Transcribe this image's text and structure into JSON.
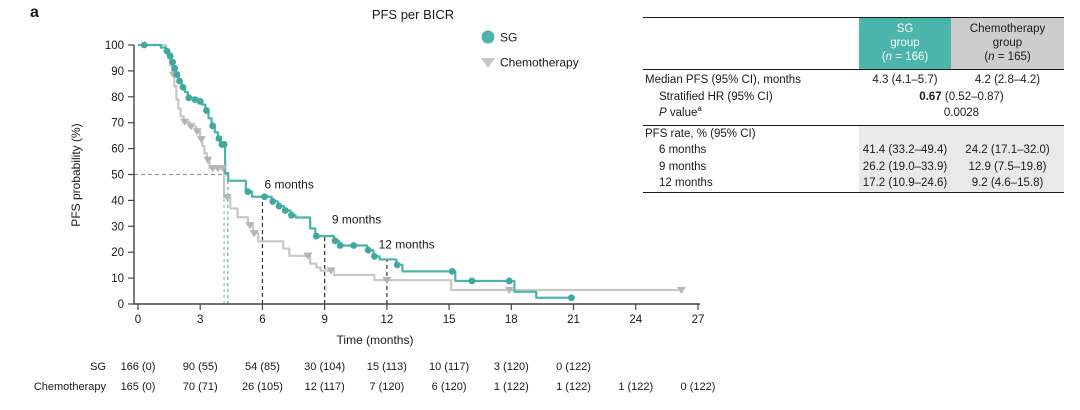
{
  "panel_label": "a",
  "accent_teal": "#4bb5ac",
  "chemo_gray": "#c7c7c7",
  "chart_data": {
    "type": "line",
    "subtype": "kaplan-meier-step",
    "title": "PFS per BICR",
    "xlabel": "Time (months)",
    "ylabel": "PFS probability (%)",
    "xlim": [
      0,
      27
    ],
    "ylim": [
      0,
      100
    ],
    "xticks": [
      0,
      3,
      6,
      9,
      12,
      15,
      18,
      21,
      24,
      27
    ],
    "yticks": [
      0,
      10,
      20,
      30,
      40,
      50,
      60,
      70,
      80,
      90,
      100
    ],
    "grid": false,
    "legend_position": "upper right inside",
    "legend": [
      {
        "label": "SG",
        "marker": "circle",
        "color": "#4bb5ac"
      },
      {
        "label": "Chemotherapy",
        "marker": "triangle-down",
        "color": "#c7c7c7"
      }
    ],
    "series": [
      {
        "name": "Chemotherapy",
        "color": "#c7c7c7",
        "censor_color": "#b5b5b5",
        "marker": "triangle-down",
        "end_t": 26.3,
        "steps": [
          [
            0,
            100
          ],
          [
            1.35,
            97.5
          ],
          [
            1.45,
            95
          ],
          [
            1.55,
            92
          ],
          [
            1.65,
            88.5
          ],
          [
            1.75,
            84
          ],
          [
            1.85,
            79
          ],
          [
            1.95,
            75.5
          ],
          [
            2.05,
            72.5
          ],
          [
            2.2,
            70.3
          ],
          [
            2.5,
            68.6
          ],
          [
            2.8,
            66.6
          ],
          [
            3.0,
            63.6
          ],
          [
            3.1,
            61
          ],
          [
            3.2,
            58.2
          ],
          [
            3.32,
            55.6
          ],
          [
            3.45,
            52.4
          ],
          [
            4.15,
            41.2
          ],
          [
            4.45,
            36.9
          ],
          [
            4.8,
            33.5
          ],
          [
            5.3,
            30.4
          ],
          [
            5.55,
            27.3
          ],
          [
            5.8,
            24.2
          ],
          [
            7.0,
            21.4
          ],
          [
            7.3,
            18.6
          ],
          [
            8.3,
            15.6
          ],
          [
            8.6,
            14.1
          ],
          [
            8.8,
            12.9
          ],
          [
            9.45,
            11.2
          ],
          [
            11.4,
            9.2
          ],
          [
            15.1,
            5.4
          ]
        ],
        "censors": [
          [
            1.7,
            88.5
          ],
          [
            2.25,
            70.3
          ],
          [
            2.55,
            68.6
          ],
          [
            2.85,
            66.6
          ],
          [
            3.05,
            63.6
          ],
          [
            3.37,
            55.6
          ],
          [
            3.6,
            52.4
          ],
          [
            3.85,
            52.4
          ],
          [
            4.1,
            52.4
          ],
          [
            4.3,
            41.2
          ],
          [
            5.4,
            30.4
          ],
          [
            5.6,
            27.3
          ],
          [
            8.2,
            18.6
          ],
          [
            9.3,
            12.9
          ],
          [
            12.0,
            9.2
          ],
          [
            17.9,
            5.4
          ],
          [
            26.2,
            5.4
          ]
        ]
      },
      {
        "name": "SG",
        "color": "#4bb5ac",
        "censor_color": "#3fa89f",
        "marker": "circle",
        "end_t": 21.0,
        "steps": [
          [
            0,
            100
          ],
          [
            1.1,
            99
          ],
          [
            1.35,
            97.6
          ],
          [
            1.5,
            95.8
          ],
          [
            1.62,
            93.4
          ],
          [
            1.72,
            91
          ],
          [
            1.82,
            88.6
          ],
          [
            1.95,
            86.1
          ],
          [
            2.1,
            83.7
          ],
          [
            2.25,
            81.9
          ],
          [
            2.4,
            79.6
          ],
          [
            2.7,
            78.9
          ],
          [
            2.95,
            78.2
          ],
          [
            3.1,
            77
          ],
          [
            3.25,
            74.7
          ],
          [
            3.4,
            71.7
          ],
          [
            3.55,
            68.8
          ],
          [
            3.7,
            66.3
          ],
          [
            3.85,
            63.9
          ],
          [
            4.0,
            61.6
          ],
          [
            4.2,
            50.6
          ],
          [
            4.35,
            47.6
          ],
          [
            5.2,
            43.4
          ],
          [
            5.5,
            41.4
          ],
          [
            6.45,
            39.6
          ],
          [
            6.75,
            37.8
          ],
          [
            7.05,
            36.1
          ],
          [
            7.35,
            34.3
          ],
          [
            7.6,
            33.4
          ],
          [
            8.3,
            29.2
          ],
          [
            8.55,
            26.2
          ],
          [
            9.45,
            24.4
          ],
          [
            9.7,
            22.6
          ],
          [
            11.05,
            20.8
          ],
          [
            11.35,
            18.4
          ],
          [
            11.65,
            17.2
          ],
          [
            12.45,
            15.1
          ],
          [
            12.75,
            12.6
          ],
          [
            15.3,
            8.9
          ],
          [
            18.15,
            4.7
          ],
          [
            19.2,
            2.4
          ]
        ],
        "censors": [
          [
            0.3,
            100
          ],
          [
            1.4,
            97.6
          ],
          [
            1.55,
            95.8
          ],
          [
            1.67,
            93.4
          ],
          [
            1.77,
            91
          ],
          [
            1.88,
            88.6
          ],
          [
            2.0,
            86.1
          ],
          [
            2.17,
            83.7
          ],
          [
            2.45,
            79.6
          ],
          [
            2.75,
            78.9
          ],
          [
            3.0,
            78.2
          ],
          [
            3.3,
            74.7
          ],
          [
            3.6,
            68.8
          ],
          [
            3.9,
            63.9
          ],
          [
            4.05,
            61.6
          ],
          [
            4.15,
            61.6
          ],
          [
            5.3,
            43.4
          ],
          [
            6.1,
            41.4
          ],
          [
            6.5,
            39.6
          ],
          [
            6.8,
            37.8
          ],
          [
            7.1,
            36.1
          ],
          [
            7.4,
            34.3
          ],
          [
            8.6,
            26.2
          ],
          [
            9.5,
            24.4
          ],
          [
            9.75,
            22.6
          ],
          [
            10.4,
            22.6
          ],
          [
            11.1,
            20.8
          ],
          [
            11.4,
            18.4
          ],
          [
            12.5,
            15.1
          ],
          [
            15.15,
            12.6
          ],
          [
            16.1,
            8.9
          ],
          [
            17.9,
            8.9
          ],
          [
            20.9,
            2.4
          ]
        ]
      }
    ],
    "guides": [
      {
        "orient": "h",
        "v": 50,
        "t0": 0,
        "t1": 4.33,
        "color": "#999999",
        "dash": "4 3"
      },
      {
        "orient": "v",
        "t": 4.15,
        "v": 50,
        "color": "#b0b0b0",
        "dash": "3 3"
      },
      {
        "orient": "v",
        "t": 4.33,
        "v": 50,
        "color": "#4bb5ac",
        "dash": "3 3"
      },
      {
        "orient": "v",
        "t": 6,
        "v": 41.4,
        "color": "#333333",
        "dash": "4 3"
      },
      {
        "orient": "v",
        "t": 9,
        "v": 26.2,
        "color": "#333333",
        "dash": "4 3"
      },
      {
        "orient": "v",
        "t": 12,
        "v": 17.2,
        "color": "#333333",
        "dash": "4 3"
      }
    ],
    "annotations": [
      {
        "text": "6 months",
        "t": 6.1,
        "v": 44.5
      },
      {
        "text": "9 months",
        "t": 9.35,
        "v": 31
      },
      {
        "text": "12 months",
        "t": 11.6,
        "v": 21.5
      }
    ],
    "at_risk": {
      "months": [
        0,
        3,
        6,
        9,
        12,
        15,
        18,
        21,
        24,
        27
      ],
      "rows": [
        {
          "label": "SG",
          "values": [
            "166 (0)",
            "90 (55)",
            "54 (85)",
            "30 (104)",
            "15 (113)",
            "10 (117)",
            "3 (120)",
            "0 (122)"
          ]
        },
        {
          "label": "Chemotherapy",
          "values": [
            "165 (0)",
            "70 (71)",
            "26 (105)",
            "12 (117)",
            "7 (120)",
            "6 (120)",
            "1 (122)",
            "1 (122)",
            "1 (122)",
            "0 (122)"
          ]
        }
      ]
    }
  },
  "table": {
    "header": {
      "sg": {
        "l1": "SG",
        "l2": "group",
        "n_open": "(",
        "n": "n",
        "n_rest": " = 166)"
      },
      "chemo": {
        "l1": "Chemotherapy",
        "l2": "group",
        "n_open": "(",
        "n": "n",
        "n_rest": " = 165)"
      }
    },
    "rows": {
      "median": {
        "label": "Median PFS (95% CI), months",
        "sg": "4.3 (4.1–5.7)",
        "chemo": "4.2 (2.8–4.2)"
      },
      "hr": {
        "label": "Stratified HR (95% CI)",
        "bold": "0.67",
        "rest": " (0.52–0.87)"
      },
      "pvalue": {
        "p": "P",
        "rest": " value",
        "sup": "a",
        "value": "0.0028"
      },
      "rate_header": {
        "label": "PFS rate, % (95% CI)"
      },
      "rate6": {
        "label": "6 months",
        "sg": "41.4 (33.2–49.4)",
        "chemo": "24.2 (17.1–32.0)"
      },
      "rate9": {
        "label": "9 months",
        "sg": "26.2 (19.0–33.9)",
        "chemo": "12.9 (7.5–19.8)"
      },
      "rate12": {
        "label": "12 months",
        "sg": "17.2 (10.9–24.6)",
        "chemo": "9.2 (4.6–15.8)"
      }
    }
  }
}
